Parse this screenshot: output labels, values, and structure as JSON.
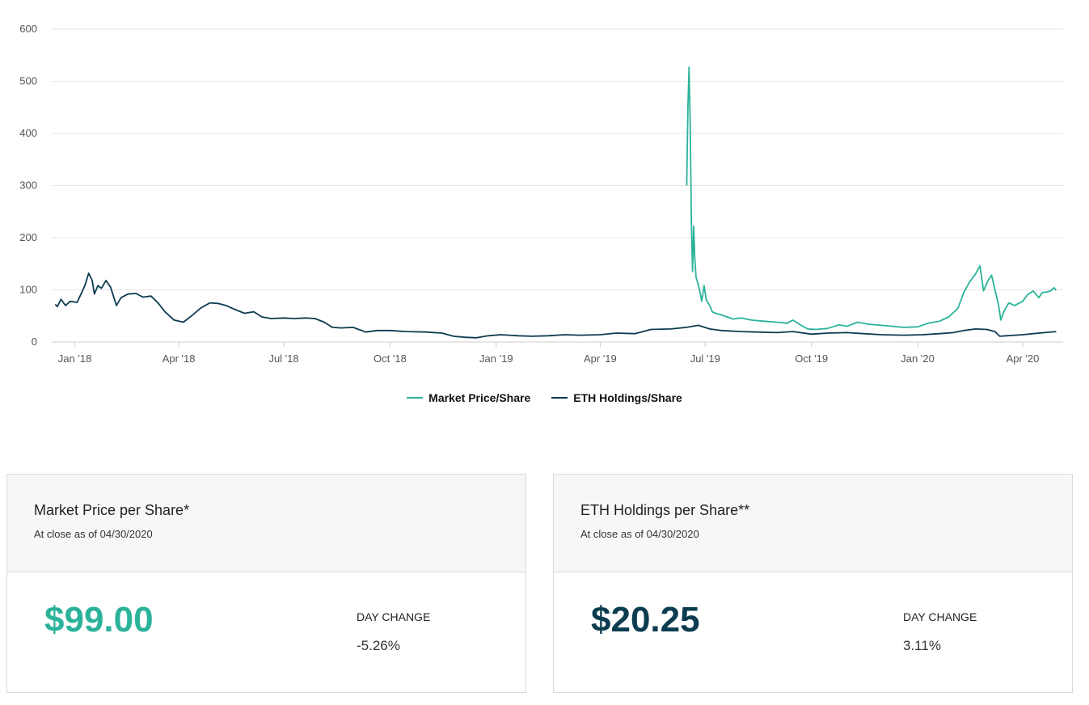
{
  "colors": {
    "market": "#2bb39a",
    "eth": "#0c3c4f",
    "grid": "#e6e6e6",
    "axis": "#cccccc"
  },
  "legend": {
    "market_label": "Market Price/Share",
    "eth_label": "ETH Holdings/Share"
  },
  "chart_data": {
    "type": "line",
    "title": "",
    "xlabel": "",
    "ylabel": "",
    "ylim": [
      0,
      600
    ],
    "yticks": [
      0,
      100,
      200,
      300,
      400,
      500,
      600
    ],
    "xticks": [
      {
        "date": "2018-01-01",
        "label": "Jan '18"
      },
      {
        "date": "2018-04-01",
        "label": "Apr '18"
      },
      {
        "date": "2018-07-01",
        "label": "Jul '18"
      },
      {
        "date": "2018-10-01",
        "label": "Oct '18"
      },
      {
        "date": "2019-01-01",
        "label": "Jan '19"
      },
      {
        "date": "2019-04-01",
        "label": "Apr '19"
      },
      {
        "date": "2019-07-01",
        "label": "Jul '19"
      },
      {
        "date": "2019-10-01",
        "label": "Oct '19"
      },
      {
        "date": "2020-01-01",
        "label": "Jan '20"
      },
      {
        "date": "2020-04-01",
        "label": "Apr '20"
      }
    ],
    "grid": true,
    "legend_position": "bottom-center",
    "series": [
      {
        "name": "Market Price/Share",
        "color": "#2bb39a",
        "points": [
          [
            "2019-06-15",
            300
          ],
          [
            "2019-06-16",
            450
          ],
          [
            "2019-06-17",
            527
          ],
          [
            "2019-06-18",
            420
          ],
          [
            "2019-06-19",
            230
          ],
          [
            "2019-06-20",
            135
          ],
          [
            "2019-06-21",
            222
          ],
          [
            "2019-06-22",
            160
          ],
          [
            "2019-06-23",
            125
          ],
          [
            "2019-06-25",
            110
          ],
          [
            "2019-06-27",
            90
          ],
          [
            "2019-06-28",
            78
          ],
          [
            "2019-06-30",
            108
          ],
          [
            "2019-07-02",
            80
          ],
          [
            "2019-07-05",
            70
          ],
          [
            "2019-07-07",
            58
          ],
          [
            "2019-07-10",
            55
          ],
          [
            "2019-07-15",
            52
          ],
          [
            "2019-07-20",
            48
          ],
          [
            "2019-07-25",
            44
          ],
          [
            "2019-08-01",
            46
          ],
          [
            "2019-08-10",
            42
          ],
          [
            "2019-08-20",
            40
          ],
          [
            "2019-09-01",
            38
          ],
          [
            "2019-09-10",
            36
          ],
          [
            "2019-09-15",
            42
          ],
          [
            "2019-09-22",
            32
          ],
          [
            "2019-09-28",
            25
          ],
          [
            "2019-10-05",
            24
          ],
          [
            "2019-10-15",
            26
          ],
          [
            "2019-10-25",
            33
          ],
          [
            "2019-11-01",
            30
          ],
          [
            "2019-11-10",
            38
          ],
          [
            "2019-11-20",
            34
          ],
          [
            "2019-12-01",
            32
          ],
          [
            "2019-12-10",
            30
          ],
          [
            "2019-12-20",
            28
          ],
          [
            "2020-01-01",
            29
          ],
          [
            "2020-01-10",
            36
          ],
          [
            "2020-01-20",
            40
          ],
          [
            "2020-01-28",
            48
          ],
          [
            "2020-02-05",
            65
          ],
          [
            "2020-02-10",
            95
          ],
          [
            "2020-02-15",
            115
          ],
          [
            "2020-02-20",
            130
          ],
          [
            "2020-02-24",
            146
          ],
          [
            "2020-02-27",
            98
          ],
          [
            "2020-03-02",
            118
          ],
          [
            "2020-03-05",
            128
          ],
          [
            "2020-03-08",
            100
          ],
          [
            "2020-03-11",
            72
          ],
          [
            "2020-03-13",
            42
          ],
          [
            "2020-03-16",
            60
          ],
          [
            "2020-03-20",
            75
          ],
          [
            "2020-03-25",
            70
          ],
          [
            "2020-04-01",
            78
          ],
          [
            "2020-04-05",
            90
          ],
          [
            "2020-04-10",
            98
          ],
          [
            "2020-04-15",
            85
          ],
          [
            "2020-04-18",
            95
          ],
          [
            "2020-04-22",
            96
          ],
          [
            "2020-04-25",
            98
          ],
          [
            "2020-04-28",
            104
          ],
          [
            "2020-04-30",
            99
          ]
        ]
      },
      {
        "name": "ETH Holdings/Share",
        "color": "#0c3c4f",
        "points": [
          [
            "2017-12-15",
            72
          ],
          [
            "2017-12-17",
            68
          ],
          [
            "2017-12-20",
            82
          ],
          [
            "2017-12-24",
            70
          ],
          [
            "2017-12-28",
            78
          ],
          [
            "2018-01-03",
            76
          ],
          [
            "2018-01-07",
            95
          ],
          [
            "2018-01-10",
            110
          ],
          [
            "2018-01-13",
            132
          ],
          [
            "2018-01-16",
            118
          ],
          [
            "2018-01-18",
            92
          ],
          [
            "2018-01-21",
            108
          ],
          [
            "2018-01-24",
            103
          ],
          [
            "2018-01-28",
            118
          ],
          [
            "2018-02-01",
            105
          ],
          [
            "2018-02-06",
            70
          ],
          [
            "2018-02-10",
            85
          ],
          [
            "2018-02-16",
            92
          ],
          [
            "2018-02-23",
            93
          ],
          [
            "2018-03-01",
            86
          ],
          [
            "2018-03-08",
            88
          ],
          [
            "2018-03-14",
            75
          ],
          [
            "2018-03-20",
            58
          ],
          [
            "2018-03-28",
            42
          ],
          [
            "2018-04-05",
            38
          ],
          [
            "2018-04-12",
            50
          ],
          [
            "2018-04-20",
            65
          ],
          [
            "2018-04-28",
            75
          ],
          [
            "2018-05-05",
            74
          ],
          [
            "2018-05-12",
            70
          ],
          [
            "2018-05-20",
            62
          ],
          [
            "2018-05-28",
            55
          ],
          [
            "2018-06-05",
            58
          ],
          [
            "2018-06-12",
            48
          ],
          [
            "2018-06-20",
            45
          ],
          [
            "2018-07-01",
            46
          ],
          [
            "2018-07-10",
            45
          ],
          [
            "2018-07-20",
            46
          ],
          [
            "2018-07-28",
            45
          ],
          [
            "2018-08-05",
            38
          ],
          [
            "2018-08-12",
            28
          ],
          [
            "2018-08-20",
            27
          ],
          [
            "2018-08-30",
            28
          ],
          [
            "2018-09-10",
            19
          ],
          [
            "2018-09-20",
            22
          ],
          [
            "2018-10-01",
            22
          ],
          [
            "2018-10-15",
            20
          ],
          [
            "2018-11-01",
            19
          ],
          [
            "2018-11-15",
            17
          ],
          [
            "2018-11-25",
            11
          ],
          [
            "2018-12-05",
            9
          ],
          [
            "2018-12-15",
            8
          ],
          [
            "2018-12-25",
            12
          ],
          [
            "2019-01-05",
            14
          ],
          [
            "2019-01-20",
            12
          ],
          [
            "2019-02-01",
            11
          ],
          [
            "2019-02-15",
            12
          ],
          [
            "2019-03-01",
            14
          ],
          [
            "2019-03-15",
            13
          ],
          [
            "2019-04-01",
            14
          ],
          [
            "2019-04-15",
            17
          ],
          [
            "2019-05-01",
            16
          ],
          [
            "2019-05-15",
            24
          ],
          [
            "2019-06-01",
            25
          ],
          [
            "2019-06-15",
            28
          ],
          [
            "2019-06-25",
            32
          ],
          [
            "2019-07-05",
            25
          ],
          [
            "2019-07-15",
            22
          ],
          [
            "2019-08-01",
            20
          ],
          [
            "2019-08-15",
            19
          ],
          [
            "2019-09-01",
            18
          ],
          [
            "2019-09-15",
            20
          ],
          [
            "2019-10-01",
            15
          ],
          [
            "2019-10-15",
            17
          ],
          [
            "2019-11-01",
            18
          ],
          [
            "2019-11-15",
            16
          ],
          [
            "2019-12-01",
            14
          ],
          [
            "2019-12-20",
            13
          ],
          [
            "2020-01-05",
            14
          ],
          [
            "2020-01-20",
            16
          ],
          [
            "2020-02-01",
            18
          ],
          [
            "2020-02-10",
            22
          ],
          [
            "2020-02-20",
            25
          ],
          [
            "2020-03-01",
            24
          ],
          [
            "2020-03-08",
            20
          ],
          [
            "2020-03-12",
            11
          ],
          [
            "2020-03-18",
            12
          ],
          [
            "2020-03-25",
            13
          ],
          [
            "2020-04-01",
            14
          ],
          [
            "2020-04-10",
            16
          ],
          [
            "2020-04-20",
            18
          ],
          [
            "2020-04-30",
            20
          ]
        ]
      }
    ]
  },
  "cards": [
    {
      "title": "Market Price per Share*",
      "subtitle": "At close as of 04/30/2020",
      "value": "$99.00",
      "change_label": "DAY CHANGE",
      "change_value": "-5.26%"
    },
    {
      "title": "ETH Holdings per Share**",
      "subtitle": "At close as of 04/30/2020",
      "value": "$20.25",
      "change_label": "DAY CHANGE",
      "change_value": "3.11%"
    }
  ]
}
